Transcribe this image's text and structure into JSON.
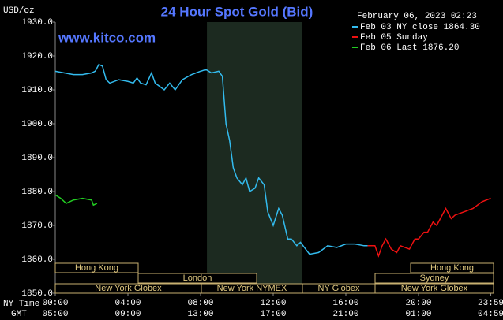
{
  "chart_data": {
    "type": "line",
    "title": "24 Hour Spot Gold (Bid)",
    "website": "www.kitco.com",
    "timestamp": "February 06, 2023 02:23",
    "y_unit": "USD/oz",
    "x_axis_label": "NY Time",
    "x2_axis_label": "GMT",
    "xlim": [
      0,
      24
    ],
    "ylim": [
      1850,
      1930
    ],
    "xticks": [
      {
        "value": 0,
        "label": "00:00"
      },
      {
        "value": 4,
        "label": "04:00"
      },
      {
        "value": 8,
        "label": "08:00"
      },
      {
        "value": 12,
        "label": "12:00"
      },
      {
        "value": 16,
        "label": "16:00"
      },
      {
        "value": 20,
        "label": "20:00"
      },
      {
        "value": 23.98,
        "label": "23:59"
      }
    ],
    "x2ticks": [
      {
        "value": 0,
        "label": "05:00"
      },
      {
        "value": 4,
        "label": "09:00"
      },
      {
        "value": 8,
        "label": "13:00"
      },
      {
        "value": 12,
        "label": "17:00"
      },
      {
        "value": 16,
        "label": "21:00"
      },
      {
        "value": 20,
        "label": "01:00"
      },
      {
        "value": 23.98,
        "label": "04:59"
      }
    ],
    "yticks": [
      {
        "value": 1850,
        "label": "1850.0"
      },
      {
        "value": 1860,
        "label": "1860.0"
      },
      {
        "value": 1870,
        "label": "1870.0"
      },
      {
        "value": 1880,
        "label": "1880.0"
      },
      {
        "value": 1890,
        "label": "1890.0"
      },
      {
        "value": 1900,
        "label": "1900.0"
      },
      {
        "value": 1910,
        "label": "1910.0"
      },
      {
        "value": 1920,
        "label": "1920.0"
      },
      {
        "value": 1930,
        "label": "1930.0"
      }
    ],
    "shaded_range": [
      8.35,
      13.6
    ],
    "sessions": [
      "Hong Kong",
      "London",
      "New York Globex",
      "New York NYMEX",
      "NY Globex",
      "Hong Kong",
      "Sydney",
      "New York Globex"
    ],
    "series": [
      {
        "name": "Feb 03 NY close 1864.30",
        "color": "#33bbee",
        "x": [
          0,
          0.5,
          1,
          1.5,
          2,
          2.2,
          2.4,
          2.6,
          2.8,
          3,
          3.5,
          4,
          4.3,
          4.5,
          4.7,
          5,
          5.3,
          5.5,
          6,
          6.3,
          6.6,
          7,
          7.5,
          8,
          8.3,
          8.6,
          9,
          9.2,
          9.4,
          9.6,
          9.8,
          10,
          10.3,
          10.5,
          10.7,
          11,
          11.2,
          11.5,
          11.7,
          12,
          12.3,
          12.5,
          12.8,
          13,
          13.3,
          13.5,
          14,
          14.5,
          15,
          15.5,
          16,
          16.5,
          17,
          17.2
        ],
        "values": [
          1915.5,
          1915,
          1914.5,
          1914.5,
          1915,
          1915.5,
          1917.5,
          1917,
          1913,
          1912,
          1913,
          1912.5,
          1912,
          1913.5,
          1912,
          1911.5,
          1915,
          1912,
          1910,
          1912,
          1910,
          1913,
          1914.5,
          1915.5,
          1916,
          1915,
          1915.5,
          1914,
          1900,
          1895,
          1887,
          1884,
          1882,
          1884,
          1880,
          1881,
          1884,
          1882,
          1874,
          1870,
          1875,
          1873,
          1866,
          1866,
          1864,
          1865,
          1861.5,
          1862,
          1864,
          1863.5,
          1864.5,
          1864.5,
          1864,
          1864
        ]
      },
      {
        "name": "Feb 05 Sunday",
        "color": "#ee1111",
        "x": [
          17.2,
          17.6,
          17.8,
          18,
          18.2,
          18.5,
          18.8,
          19,
          19.5,
          19.8,
          20,
          20.3,
          20.5,
          20.8,
          21,
          21.5,
          21.8,
          22,
          22.5,
          23,
          23.5,
          23.98
        ],
        "values": [
          1864,
          1864,
          1861,
          1864,
          1866,
          1863,
          1862,
          1864,
          1863,
          1866,
          1866,
          1868,
          1868,
          1871,
          1870,
          1875,
          1872,
          1873,
          1874,
          1875,
          1877,
          1878
        ]
      },
      {
        "name": "Feb 06 Last 1876.20",
        "color": "#22cc22",
        "x": [
          0,
          0.3,
          0.6,
          1,
          1.5,
          2,
          2.1,
          2.3
        ],
        "values": [
          1879,
          1878,
          1876.5,
          1877.5,
          1878,
          1877.5,
          1876,
          1876.5
        ]
      }
    ]
  }
}
